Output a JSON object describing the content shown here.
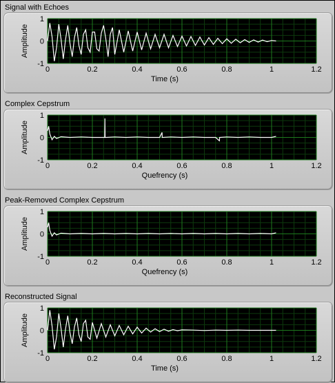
{
  "colors": {
    "plot_bg": "#000000",
    "grid_major": "#1e7a1e",
    "grid_minor": "#0d3a0d",
    "trace": "#ffffff",
    "panel": "#c8c8c8"
  },
  "plots": [
    {
      "title": "Signal with Echoes",
      "ylabel": "Amplitude",
      "xlabel": "Time (s)",
      "x_ticks": [
        "0",
        "0.2",
        "0.4",
        "0.6",
        "0.8",
        "1",
        "1.2"
      ],
      "y_ticks": [
        "1",
        "0",
        "-1"
      ]
    },
    {
      "title": "Complex Cepstrum",
      "ylabel": "Amplitude",
      "xlabel": "Quefrency (s)",
      "x_ticks": [
        "0",
        "0.2",
        "0.4",
        "0.6",
        "0.8",
        "1",
        "1.2"
      ],
      "y_ticks": [
        "1",
        "0",
        "-1"
      ]
    },
    {
      "title": "Peak-Removed Complex Cepstrum",
      "ylabel": "Amplitude",
      "xlabel": "Quefrency (s)",
      "x_ticks": [
        "0",
        "0.2",
        "0.4",
        "0.6",
        "0.8",
        "1",
        "1.2"
      ],
      "y_ticks": [
        "1",
        "0",
        "-1"
      ]
    },
    {
      "title": "Reconstructed Signal",
      "ylabel": "Amplitude",
      "xlabel": "Time (s)",
      "x_ticks": [
        "0",
        "0.2",
        "0.4",
        "0.6",
        "0.8",
        "1",
        "1.2"
      ],
      "y_ticks": [
        "1",
        "0",
        "-1"
      ]
    }
  ],
  "chart_data": [
    {
      "type": "line",
      "title": "Signal with Echoes",
      "xlabel": "Time (s)",
      "ylabel": "Amplitude",
      "xlim": [
        0,
        1.2
      ],
      "ylim": [
        -1,
        1
      ],
      "grid": true,
      "series": [
        {
          "x": [
            0,
            0.01,
            0.02,
            0.03,
            0.04,
            0.05,
            0.06,
            0.07,
            0.08,
            0.09,
            0.1,
            0.11,
            0.12,
            0.13,
            0.14,
            0.15,
            0.16,
            0.17,
            0.18,
            0.19,
            0.2,
            0.21,
            0.22,
            0.23,
            0.24,
            0.25,
            0.26,
            0.27,
            0.28,
            0.29,
            0.3,
            0.32,
            0.34,
            0.36,
            0.38,
            0.4,
            0.42,
            0.44,
            0.46,
            0.48,
            0.5,
            0.52,
            0.54,
            0.56,
            0.58,
            0.6,
            0.62,
            0.64,
            0.66,
            0.68,
            0.7,
            0.72,
            0.74,
            0.76,
            0.78,
            0.8,
            0.82,
            0.84,
            0.86,
            0.88,
            0.9,
            0.92,
            0.94,
            0.96,
            0.98,
            1.0,
            1.02
          ],
          "y": [
            0,
            0.8,
            0.2,
            -0.9,
            -0.3,
            0.75,
            0.1,
            -0.8,
            0.05,
            0.7,
            -0.1,
            -0.7,
            0.15,
            0.6,
            -0.2,
            -0.6,
            0.3,
            0.5,
            -0.3,
            -0.5,
            0.4,
            0.4,
            -0.35,
            -0.45,
            0.35,
            0.7,
            0.1,
            -0.7,
            0.3,
            0.6,
            -0.6,
            0.5,
            -0.5,
            0.45,
            -0.45,
            0.4,
            -0.4,
            0.35,
            -0.35,
            0.3,
            -0.3,
            0.3,
            -0.3,
            0.25,
            -0.25,
            0.22,
            -0.22,
            0.2,
            -0.2,
            0.18,
            -0.18,
            0.15,
            -0.15,
            0.12,
            -0.12,
            0.1,
            -0.1,
            0.08,
            -0.08,
            0.06,
            -0.06,
            0.05,
            -0.05,
            0.04,
            -0.03,
            0.02,
            0.0
          ]
        }
      ]
    },
    {
      "type": "line",
      "title": "Complex Cepstrum",
      "xlabel": "Quefrency (s)",
      "ylabel": "Amplitude",
      "xlim": [
        0,
        1.2
      ],
      "ylim": [
        -1,
        1
      ],
      "grid": true,
      "series": [
        {
          "x": [
            0,
            0.005,
            0.01,
            0.02,
            0.03,
            0.04,
            0.06,
            0.1,
            0.15,
            0.2,
            0.255,
            0.256,
            0.257,
            0.26,
            0.3,
            0.35,
            0.4,
            0.45,
            0.5,
            0.511,
            0.512,
            0.513,
            0.55,
            0.6,
            0.65,
            0.7,
            0.75,
            0.767,
            0.768,
            0.769,
            0.8,
            0.85,
            0.9,
            0.95,
            1.0,
            1.02
          ],
          "y": [
            0.3,
            0.5,
            0.15,
            -0.1,
            0.05,
            -0.05,
            0.03,
            0.0,
            0.02,
            0.0,
            0.0,
            0.85,
            0.0,
            0.0,
            0.02,
            0.0,
            0.02,
            0.0,
            0.0,
            0.22,
            0.0,
            0.0,
            0.02,
            0.0,
            0.02,
            0.0,
            0.0,
            -0.15,
            0.0,
            0.0,
            0.02,
            0.0,
            0.02,
            0.0,
            0.0,
            0.05
          ]
        }
      ]
    },
    {
      "type": "line",
      "title": "Peak-Removed Complex Cepstrum",
      "xlabel": "Quefrency (s)",
      "ylabel": "Amplitude",
      "xlim": [
        0,
        1.2
      ],
      "ylim": [
        -1,
        1
      ],
      "grid": true,
      "series": [
        {
          "x": [
            0,
            0.005,
            0.01,
            0.02,
            0.03,
            0.04,
            0.06,
            0.1,
            0.15,
            0.2,
            0.25,
            0.3,
            0.35,
            0.4,
            0.45,
            0.5,
            0.55,
            0.6,
            0.65,
            0.7,
            0.75,
            0.8,
            0.85,
            0.9,
            0.95,
            1.0,
            1.02
          ],
          "y": [
            0.3,
            0.5,
            0.15,
            -0.1,
            0.05,
            -0.05,
            0.03,
            0.0,
            0.02,
            0.0,
            0.02,
            0.0,
            0.02,
            0.0,
            0.02,
            0.0,
            0.02,
            0.0,
            0.02,
            0.0,
            0.02,
            0.0,
            0.02,
            0.0,
            0.02,
            0.0,
            0.05
          ]
        }
      ]
    },
    {
      "type": "line",
      "title": "Reconstructed Signal",
      "xlabel": "Time (s)",
      "ylabel": "Amplitude",
      "xlim": [
        0,
        1.2
      ],
      "ylim": [
        -1,
        1
      ],
      "grid": true,
      "series": [
        {
          "x": [
            0,
            0.01,
            0.02,
            0.03,
            0.04,
            0.05,
            0.06,
            0.07,
            0.08,
            0.09,
            0.1,
            0.11,
            0.12,
            0.13,
            0.14,
            0.15,
            0.16,
            0.17,
            0.18,
            0.19,
            0.2,
            0.22,
            0.24,
            0.26,
            0.28,
            0.3,
            0.32,
            0.34,
            0.36,
            0.38,
            0.4,
            0.42,
            0.44,
            0.46,
            0.48,
            0.5,
            0.52,
            0.54,
            0.56,
            0.58,
            0.6,
            0.65,
            0.7,
            0.75,
            0.8,
            0.85,
            0.9,
            0.95,
            1.0,
            1.02
          ],
          "y": [
            0,
            0.9,
            0.2,
            -0.85,
            -0.3,
            0.75,
            0.1,
            -0.75,
            0.05,
            0.65,
            -0.1,
            -0.6,
            0.15,
            0.55,
            -0.2,
            -0.5,
            0.3,
            0.45,
            -0.3,
            -0.4,
            0.35,
            -0.35,
            0.3,
            -0.3,
            0.25,
            -0.25,
            0.22,
            -0.2,
            0.18,
            -0.16,
            0.14,
            -0.12,
            0.1,
            -0.08,
            0.07,
            -0.06,
            0.05,
            -0.04,
            0.03,
            -0.02,
            0.02,
            0.01,
            -0.01,
            0.01,
            0.0,
            0.01,
            0.0,
            0.0,
            0.0,
            0.0
          ]
        }
      ]
    }
  ]
}
